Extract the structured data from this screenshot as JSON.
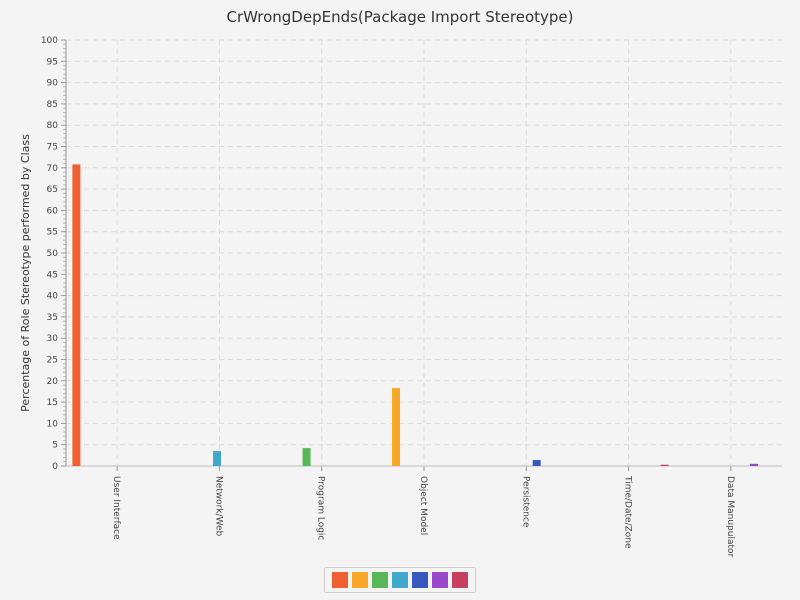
{
  "chart_data": {
    "type": "bar",
    "title": "CrWrongDepEnds(Package Import Stereotype)",
    "xlabel": "",
    "ylabel": "Percentage of Role Stereotype performed by Class",
    "ylim": [
      0,
      100
    ],
    "yticks": [
      0,
      5,
      10,
      15,
      20,
      25,
      30,
      35,
      40,
      45,
      50,
      55,
      60,
      65,
      70,
      75,
      80,
      85,
      90,
      95,
      100
    ],
    "categories": [
      "User Interface",
      "Network/Web",
      "Program Logic",
      "Object Model",
      "Persistence",
      "Time/Date/Zone",
      "Data Manupulator"
    ],
    "series": [
      {
        "color": "#f06030",
        "values": [
          70.8,
          0,
          0,
          0,
          0,
          0,
          0
        ]
      },
      {
        "color": "#f8a828",
        "values": [
          0,
          0,
          0,
          18.3,
          0,
          0,
          0
        ]
      },
      {
        "color": "#58b858",
        "values": [
          0,
          0,
          4.2,
          0,
          0,
          0,
          0
        ]
      },
      {
        "color": "#40a8c8",
        "values": [
          0,
          3.5,
          0,
          0,
          0,
          0,
          0
        ]
      },
      {
        "color": "#3858c0",
        "values": [
          0,
          0,
          0,
          0,
          1.4,
          0,
          0
        ]
      },
      {
        "color": "#9848c8",
        "values": [
          0,
          0,
          0,
          0,
          0,
          0,
          0.5
        ]
      },
      {
        "color": "#c84060",
        "values": [
          0,
          0,
          0,
          0,
          0,
          0.3,
          0
        ]
      }
    ],
    "bar_assignments": [
      {
        "category": 0,
        "series": 0
      },
      {
        "category": 1,
        "series": 3
      },
      {
        "category": 2,
        "series": 2
      },
      {
        "category": 3,
        "series": 1
      },
      {
        "category": 4,
        "series": 4
      },
      {
        "category": 5,
        "series": 6
      },
      {
        "category": 6,
        "series": 5
      }
    ],
    "grid": true,
    "legend": "bottom"
  }
}
